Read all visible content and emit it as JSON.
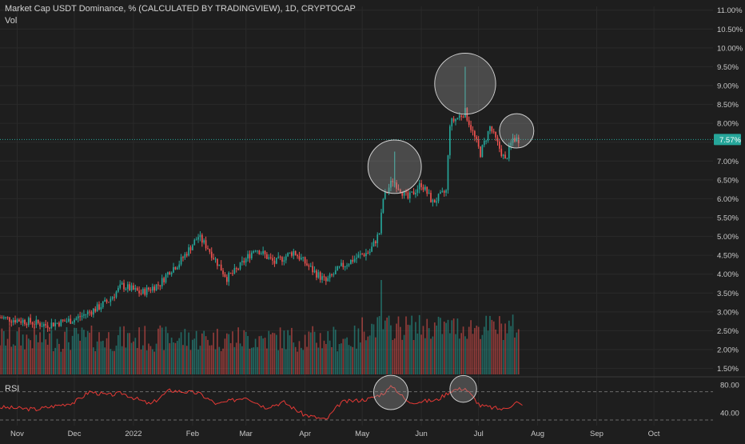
{
  "header": {
    "symbol_title": "Market Cap USDT Dominance, % (CALCULATED BY TRADINGVIEW), 1D, CRYPTOCAP",
    "vol_label": "Vol",
    "rsi_label": "RSI"
  },
  "colors": {
    "background": "#1e1e1e",
    "up": "#26a69a",
    "down": "#ef5350",
    "rsi_line": "#e53935",
    "price_badge": "#26a69a",
    "grid": "#2a2a2a",
    "circle_fill": "#9e9e9e"
  },
  "chart_data": [
    {
      "type": "candlestick",
      "title": "Market Cap USDT Dominance, % (CALCULATED BY TRADINGVIEW), 1D, CRYPTOCAP",
      "y_ticks": [
        "11.00%",
        "10.50%",
        "10.00%",
        "9.50%",
        "9.00%",
        "8.50%",
        "8.00%",
        "7.50%",
        "7.00%",
        "6.50%",
        "6.00%",
        "5.50%",
        "5.00%",
        "4.50%",
        "4.00%",
        "3.50%",
        "3.00%",
        "2.50%",
        "2.00%",
        "1.50%"
      ],
      "ylim": [
        1.3,
        11.1
      ],
      "x_ticks": [
        "Nov",
        "Dec",
        "2022",
        "Feb",
        "Mar",
        "Apr",
        "May",
        "Jun",
        "Jul",
        "Aug",
        "Sep",
        "Oct"
      ],
      "x_range_days": [
        -9,
        365
      ],
      "tick_days": [
        0,
        30,
        61,
        92,
        120,
        151,
        181,
        212,
        242,
        273,
        304,
        334
      ],
      "last_price_label": "7.57%",
      "last_price": 7.57,
      "price_anchors": [
        [
          -9,
          2.85
        ],
        [
          5,
          2.75
        ],
        [
          15,
          2.65
        ],
        [
          30,
          2.8
        ],
        [
          42,
          3.1
        ],
        [
          48,
          3.3
        ],
        [
          55,
          3.7
        ],
        [
          65,
          3.5
        ],
        [
          75,
          3.75
        ],
        [
          80,
          4.1
        ],
        [
          85,
          4.3
        ],
        [
          95,
          5.0
        ],
        [
          100,
          4.7
        ],
        [
          110,
          3.9
        ],
        [
          115,
          4.1
        ],
        [
          125,
          4.7
        ],
        [
          135,
          4.3
        ],
        [
          145,
          4.6
        ],
        [
          155,
          4.1
        ],
        [
          162,
          3.8
        ],
        [
          170,
          4.2
        ],
        [
          180,
          4.5
        ],
        [
          185,
          4.6
        ],
        [
          190,
          5.1
        ],
        [
          192,
          6.0
        ],
        [
          197,
          6.5
        ],
        [
          205,
          6.0
        ],
        [
          212,
          6.4
        ],
        [
          218,
          5.9
        ],
        [
          225,
          6.2
        ],
        [
          227,
          8.0
        ],
        [
          235,
          8.3
        ],
        [
          243,
          7.2
        ],
        [
          248,
          7.9
        ],
        [
          256,
          7.0
        ],
        [
          260,
          7.6
        ],
        [
          263,
          7.57
        ]
      ],
      "volume_ylim": [
        0,
        25
      ],
      "volume_spike": {
        "day": 191,
        "value": 25
      },
      "highlight_circles": [
        {
          "day": 198,
          "price": 6.85,
          "radius_days": 14
        },
        {
          "day": 235,
          "price": 9.05,
          "radius_days": 16
        },
        {
          "day": 262,
          "price": 7.8,
          "radius_days": 9
        }
      ]
    },
    {
      "type": "line",
      "title": "RSI",
      "y_ticks": [
        "80.00",
        "40.00"
      ],
      "ylim": [
        22,
        90
      ],
      "levels": [
        70,
        30
      ],
      "rsi_anchors": [
        [
          -9,
          48
        ],
        [
          10,
          45
        ],
        [
          30,
          55
        ],
        [
          38,
          70
        ],
        [
          48,
          65
        ],
        [
          55,
          68
        ],
        [
          70,
          52
        ],
        [
          80,
          72
        ],
        [
          95,
          68
        ],
        [
          105,
          52
        ],
        [
          120,
          63
        ],
        [
          130,
          48
        ],
        [
          140,
          55
        ],
        [
          150,
          38
        ],
        [
          162,
          30
        ],
        [
          170,
          55
        ],
        [
          185,
          60
        ],
        [
          192,
          68
        ],
        [
          197,
          78
        ],
        [
          205,
          55
        ],
        [
          220,
          58
        ],
        [
          228,
          72
        ],
        [
          235,
          75
        ],
        [
          243,
          50
        ],
        [
          255,
          45
        ],
        [
          262,
          55
        ],
        [
          265,
          50
        ]
      ],
      "highlight_circles": [
        {
          "day": 196,
          "value": 69,
          "radius_days": 9
        },
        {
          "day": 234,
          "value": 74,
          "radius_days": 7
        }
      ]
    }
  ]
}
